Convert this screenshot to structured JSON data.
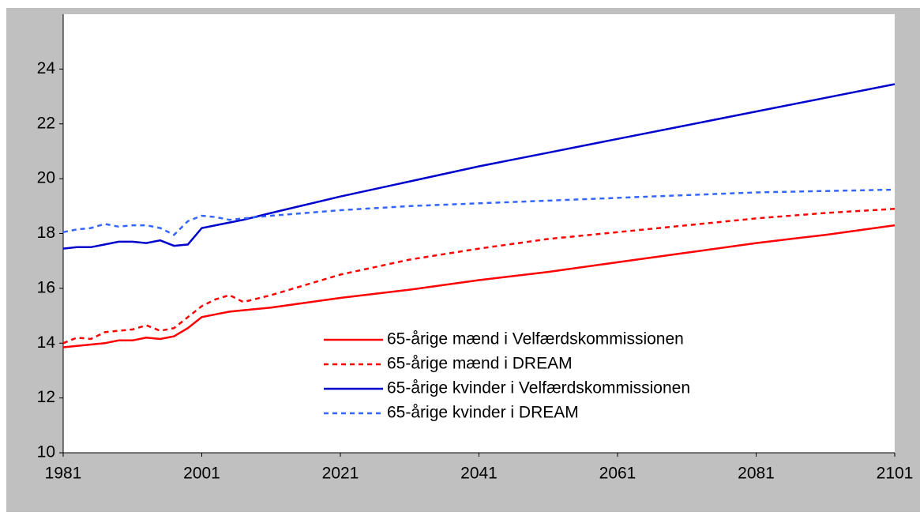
{
  "chart_data": {
    "type": "line",
    "x": [
      1981,
      1983,
      1985,
      1987,
      1989,
      1991,
      1993,
      1995,
      1997,
      1999,
      2001,
      2003,
      2005,
      2007,
      2011,
      2021,
      2031,
      2041,
      2051,
      2061,
      2071,
      2081,
      2091,
      2101
    ],
    "series": [
      {
        "name": "65-årige mænd i Velfærdskommissionen",
        "color": "#ff0000",
        "dash": false,
        "values": [
          13.85,
          13.9,
          13.95,
          14.0,
          14.1,
          14.1,
          14.2,
          14.15,
          14.25,
          14.55,
          14.95,
          15.05,
          15.15,
          15.2,
          15.3,
          15.65,
          15.95,
          16.3,
          16.6,
          16.95,
          17.3,
          17.65,
          17.95,
          18.3
        ]
      },
      {
        "name": "65-årige mænd i DREAM",
        "color": "#ff0000",
        "dash": true,
        "values": [
          14.0,
          14.2,
          14.15,
          14.4,
          14.45,
          14.5,
          14.65,
          14.45,
          14.55,
          14.95,
          15.35,
          15.6,
          15.75,
          15.5,
          15.75,
          16.5,
          17.05,
          17.45,
          17.8,
          18.05,
          18.3,
          18.55,
          18.75,
          18.9
        ]
      },
      {
        "name": "65-årige kvinder i Velfærdskommissionen",
        "color": "#0000cc",
        "dash": false,
        "values": [
          17.45,
          17.5,
          17.5,
          17.6,
          17.7,
          17.7,
          17.65,
          17.75,
          17.55,
          17.6,
          18.2,
          18.3,
          18.4,
          18.5,
          18.75,
          19.35,
          19.9,
          20.45,
          20.95,
          21.45,
          21.95,
          22.45,
          22.95,
          23.45
        ]
      },
      {
        "name": "65-årige kvinder i DREAM",
        "color": "#3366ff",
        "dash": true,
        "values": [
          18.05,
          18.15,
          18.2,
          18.35,
          18.25,
          18.3,
          18.3,
          18.2,
          17.95,
          18.45,
          18.65,
          18.6,
          18.5,
          18.55,
          18.65,
          18.85,
          19.0,
          19.1,
          19.2,
          19.3,
          19.4,
          19.5,
          19.55,
          19.6
        ]
      }
    ],
    "xlim": [
      1981,
      2101
    ],
    "xticks": [
      1981,
      2001,
      2021,
      2041,
      2061,
      2081,
      2101
    ],
    "ylim": [
      10,
      26
    ],
    "yticks": [
      10,
      12,
      14,
      16,
      18,
      20,
      22,
      24
    ],
    "grid": false,
    "legend": "lower center"
  }
}
